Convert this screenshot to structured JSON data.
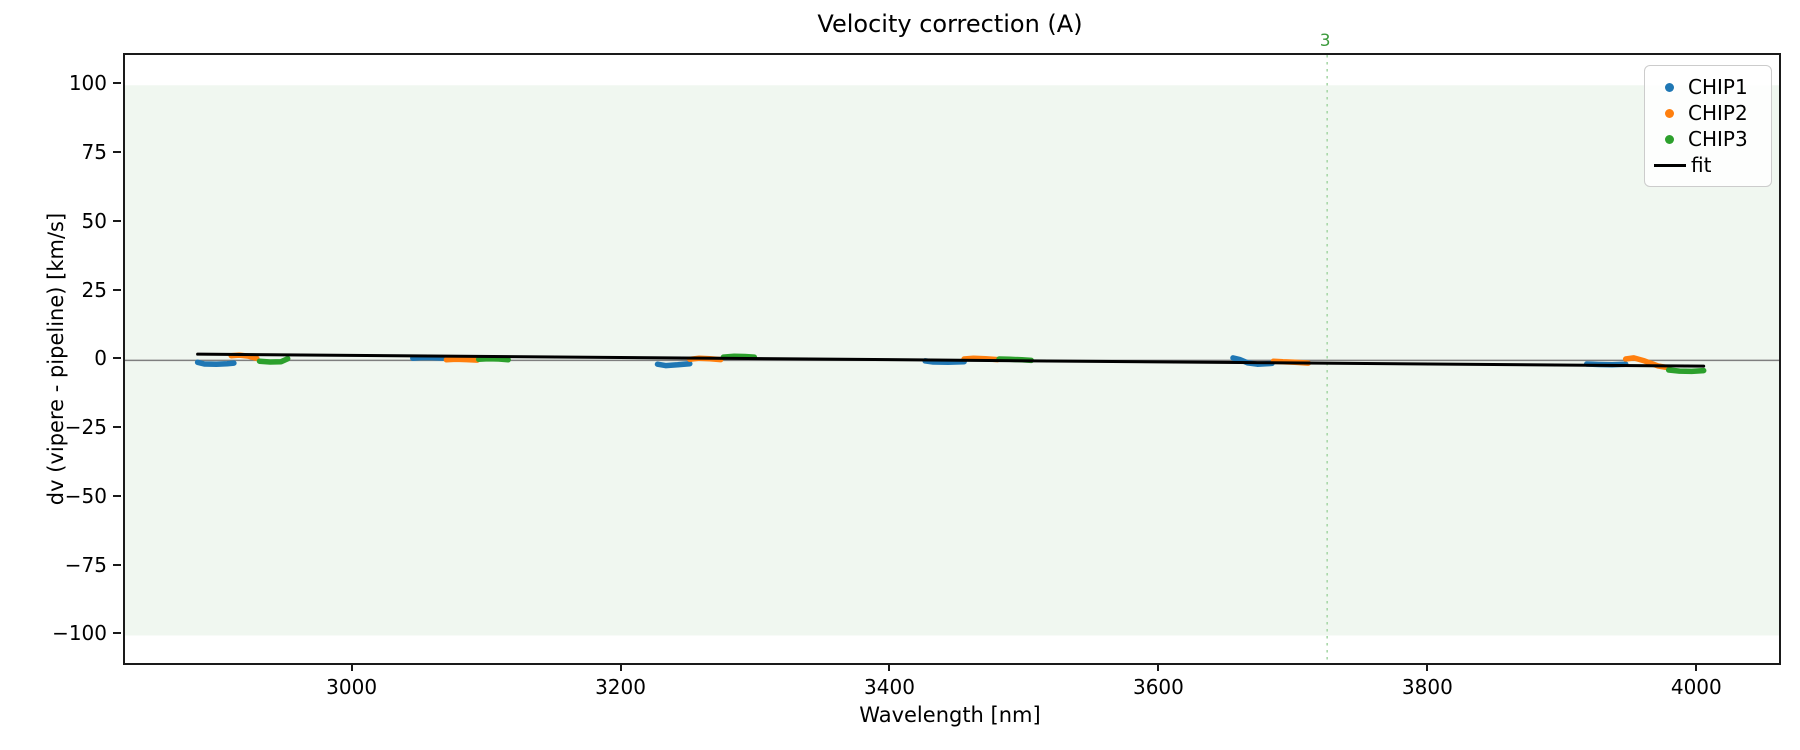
{
  "chart_data": {
    "type": "scatter",
    "title": "Velocity correction (A)",
    "xlabel": "Wavelength [nm]",
    "ylabel": "dv (vipere - pipeline) [km/s]",
    "xlim": [
      2830,
      4060
    ],
    "ylim": [
      -110,
      111
    ],
    "x_ticks": [
      "3000",
      "3200",
      "3400",
      "3600",
      "3800",
      "4000"
    ],
    "x_tick_values": [
      3000,
      3200,
      3400,
      3600,
      3800,
      4000
    ],
    "y_ticks": [
      "100",
      "75",
      "50",
      "25",
      "0",
      "−25",
      "−50",
      "−75",
      "−100"
    ],
    "y_tick_values": [
      100,
      75,
      50,
      25,
      0,
      -25,
      -50,
      -75,
      -100
    ],
    "grid": false,
    "background_band": {
      "ymin": -100,
      "ymax": 100,
      "color": "#f0f7f0"
    },
    "zero_line": {
      "y": 0,
      "color": "#7f7f7f",
      "width": 1.4
    },
    "annotation": {
      "vline_x": 3724,
      "label": "3",
      "line_color": "#a8d8a8",
      "text_color": "#3d9b3d"
    },
    "series": [
      {
        "name": "CHIP1",
        "color": "#1f77b4",
        "marker": "dot",
        "clusters": [
          [
            [
              2884,
              -0.7
            ],
            [
              2889,
              -1.3
            ],
            [
              2898,
              -1.4
            ],
            [
              2906,
              -1.2
            ],
            [
              2911,
              -1.0
            ]
          ],
          [
            [
              3044,
              0.8
            ],
            [
              3050,
              1.0
            ],
            [
              3058,
              1.0
            ],
            [
              3068,
              0.8
            ]
          ],
          [
            [
              3226,
              -1.4
            ],
            [
              3232,
              -1.9
            ],
            [
              3241,
              -1.6
            ],
            [
              3250,
              -1.2
            ]
          ],
          [
            [
              3425,
              -0.2
            ],
            [
              3431,
              -0.6
            ],
            [
              3442,
              -0.7
            ],
            [
              3454,
              -0.5
            ]
          ],
          [
            [
              3654,
              0.9
            ],
            [
              3659,
              0.3
            ],
            [
              3665,
              -0.9
            ],
            [
              3672,
              -1.4
            ],
            [
              3683,
              -1.1
            ]
          ],
          [
            [
              3917,
              -1.3
            ],
            [
              3926,
              -1.5
            ],
            [
              3936,
              -1.6
            ],
            [
              3946,
              -1.4
            ]
          ]
        ]
      },
      {
        "name": "CHIP2",
        "color": "#ff7f0e",
        "marker": "dot",
        "clusters": [
          [
            [
              2909,
              1.7
            ],
            [
              2915,
              1.9
            ],
            [
              2922,
              1.5
            ],
            [
              2928,
              0.7
            ]
          ],
          [
            [
              3069,
              0.2
            ],
            [
              3076,
              0.4
            ],
            [
              3084,
              0.3
            ],
            [
              3092,
              0.1
            ]
          ],
          [
            [
              3250,
              0.4
            ],
            [
              3257,
              0.8
            ],
            [
              3265,
              0.6
            ],
            [
              3273,
              0.3
            ]
          ],
          [
            [
              3454,
              0.5
            ],
            [
              3461,
              0.8
            ],
            [
              3470,
              0.6
            ],
            [
              3479,
              0.3
            ]
          ],
          [
            [
              3684,
              -0.3
            ],
            [
              3691,
              -0.5
            ],
            [
              3700,
              -0.7
            ],
            [
              3710,
              -1.0
            ]
          ],
          [
            [
              3946,
              0.5
            ],
            [
              3952,
              0.9
            ],
            [
              3960,
              -0.2
            ],
            [
              3970,
              -2.0
            ],
            [
              3978,
              -2.7
            ]
          ]
        ]
      },
      {
        "name": "CHIP3",
        "color": "#2ca02c",
        "marker": "dot",
        "clusters": [
          [
            [
              2930,
              -0.3
            ],
            [
              2938,
              -0.6
            ],
            [
              2946,
              -0.5
            ],
            [
              2951,
              0.6
            ]
          ],
          [
            [
              3093,
              0.4
            ],
            [
              3100,
              0.6
            ],
            [
              3108,
              0.5
            ],
            [
              3115,
              0.2
            ]
          ],
          [
            [
              3275,
              1.2
            ],
            [
              3283,
              1.5
            ],
            [
              3291,
              1.4
            ],
            [
              3298,
              1.2
            ]
          ],
          [
            [
              3480,
              0.5
            ],
            [
              3488,
              0.4
            ],
            [
              3497,
              0.2
            ],
            [
              3504,
              0.0
            ]
          ],
          [
            [
              3978,
              -3.5
            ],
            [
              3986,
              -3.9
            ],
            [
              3995,
              -4.0
            ],
            [
              4004,
              -3.7
            ]
          ]
        ]
      }
    ],
    "fit": {
      "name": "fit",
      "color": "#000000",
      "width": 3,
      "points": [
        [
          2884,
          2.25
        ],
        [
          4004,
          -2.1
        ]
      ]
    },
    "legend": {
      "position": "upper right",
      "items": [
        {
          "label": "CHIP1",
          "marker": "dot",
          "color": "#1f77b4"
        },
        {
          "label": "CHIP2",
          "marker": "dot",
          "color": "#ff7f0e"
        },
        {
          "label": "CHIP3",
          "marker": "dot",
          "color": "#2ca02c"
        },
        {
          "label": "fit",
          "marker": "line",
          "color": "#000000"
        }
      ]
    }
  }
}
